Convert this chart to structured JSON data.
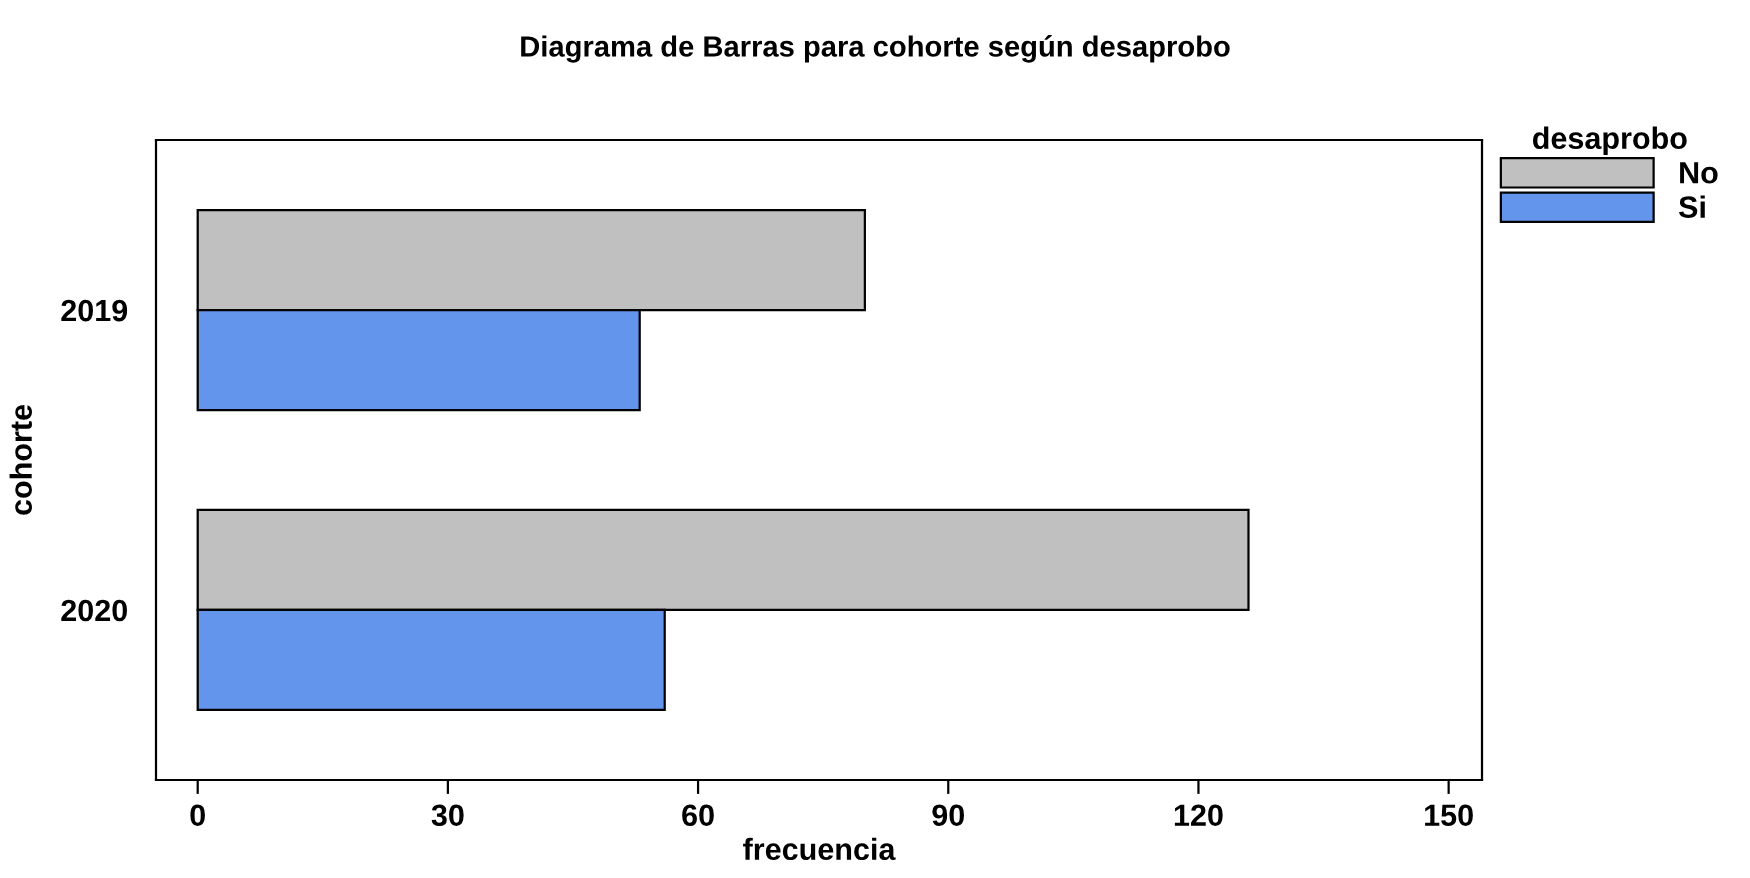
{
  "chart_data": {
    "type": "bar",
    "orientation": "horizontal",
    "title": "Diagrama de Barras para cohorte según desaprobo",
    "xlabel": "frecuencia",
    "ylabel": "cohorte",
    "legend_title": "desaprobo",
    "categories": [
      "2019",
      "2020"
    ],
    "series": [
      {
        "name": "No",
        "color": "#c0c0c0",
        "values": [
          80,
          126
        ]
      },
      {
        "name": "Si",
        "color": "#6495ed",
        "values": [
          53,
          56
        ]
      }
    ],
    "xlim": [
      -5,
      154
    ],
    "xticks": [
      0,
      30,
      60,
      90,
      120,
      150
    ],
    "grid": false,
    "legend": "top right"
  }
}
